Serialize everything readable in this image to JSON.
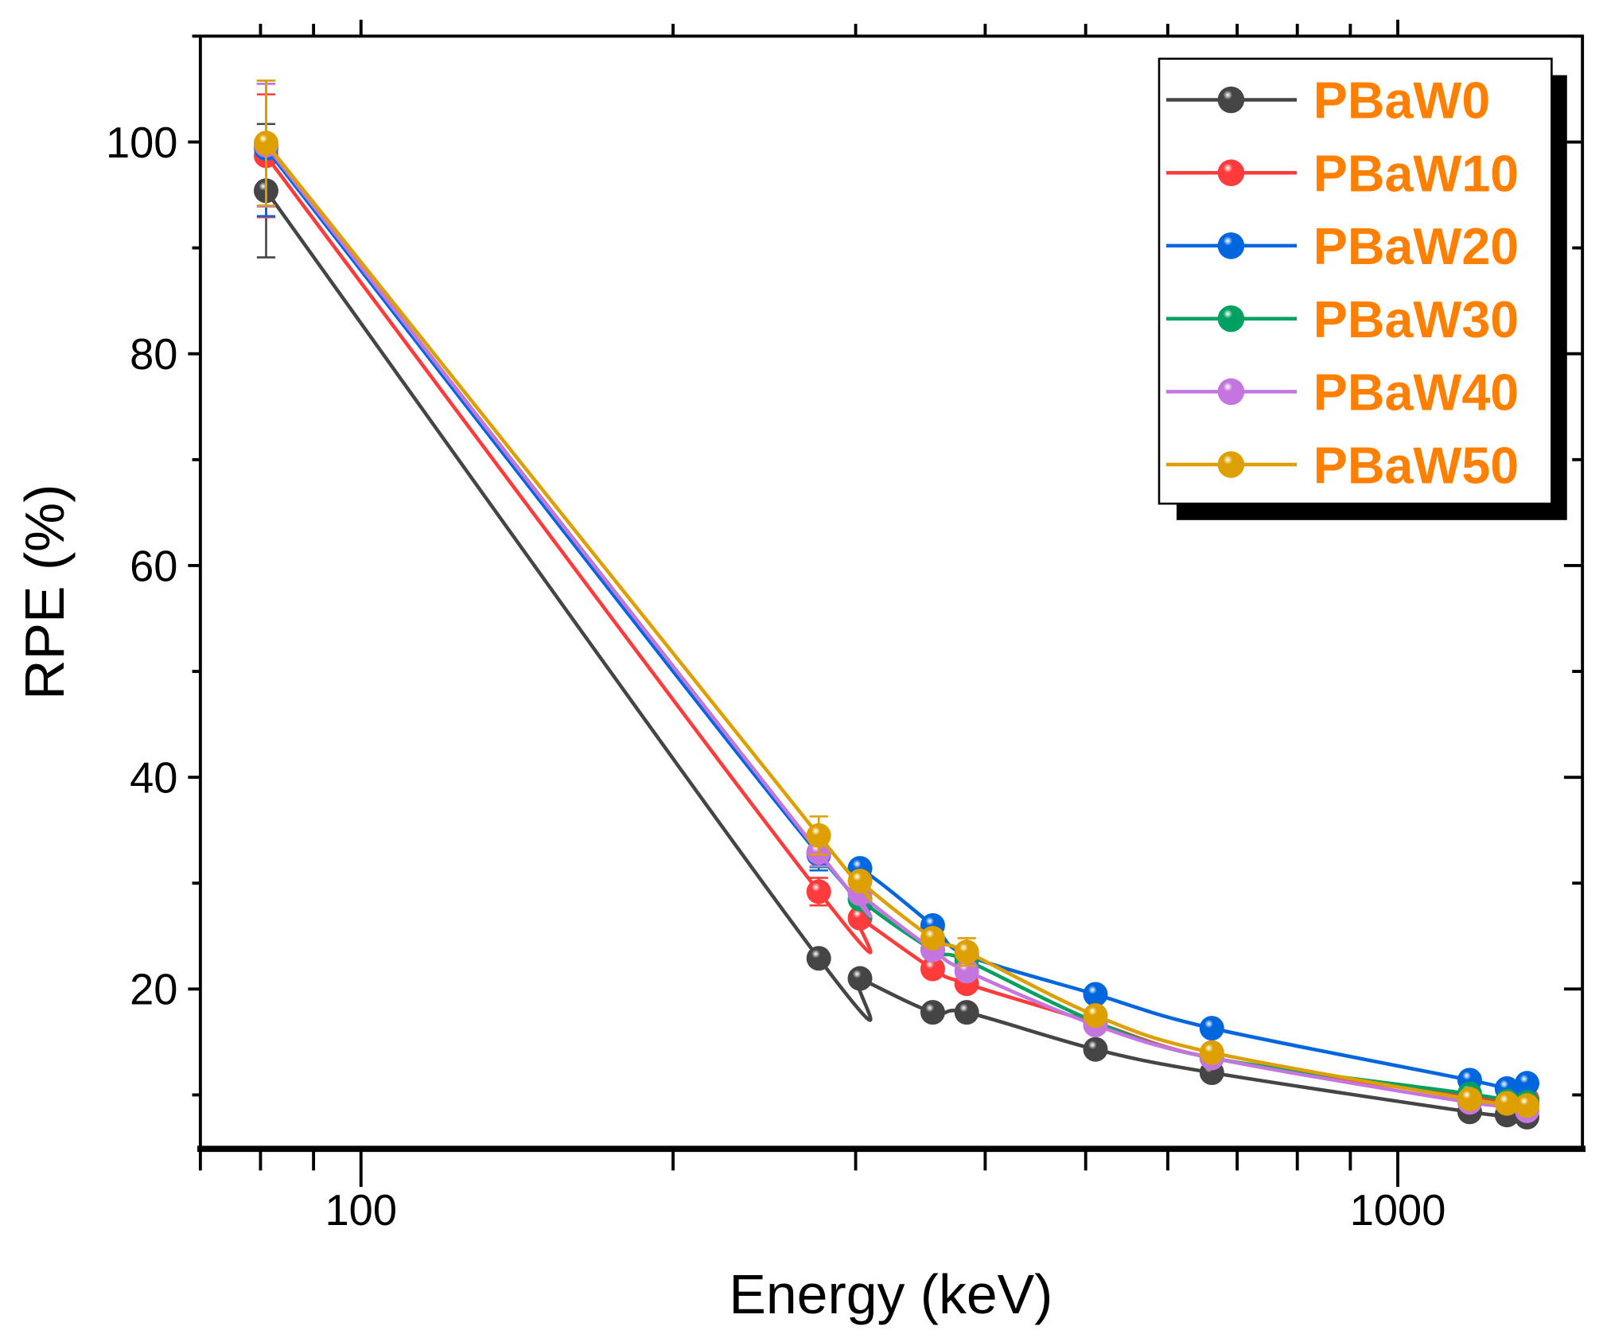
{
  "chart_data": {
    "type": "line",
    "title": "",
    "xlabel": "Energy (keV)",
    "ylabel": "RPE (%)",
    "xscale": "log",
    "xlim": [
      70,
      1507
    ],
    "ylim": [
      5,
      110
    ],
    "x_ticks": [
      100,
      1000
    ],
    "x_tick_labels": [
      "100",
      "1000"
    ],
    "y_ticks": [
      20,
      40,
      60,
      80,
      100
    ],
    "y_tick_labels": [
      "20",
      "40",
      "60",
      "80",
      "100"
    ],
    "legend_position": "top-right",
    "grid": false,
    "x": [
      81,
      276.4,
      302.9,
      356.0,
      383.9,
      511,
      661.7,
      1173.2,
      1274.5,
      1332.5
    ],
    "series": [
      {
        "name": "PBaW0",
        "color": "#454545",
        "values": [
          95.4,
          22.9,
          21.0,
          17.8,
          17.8,
          14.3,
          12.1,
          8.4,
          8.1,
          7.9
        ],
        "errors": [
          6.3,
          0.5,
          0.4,
          0.4,
          0.4,
          0.3,
          0.3,
          0.3,
          0.3,
          0.3
        ]
      },
      {
        "name": "PBaW10",
        "color": "#FF3B3B",
        "values": [
          98.7,
          29.2,
          26.7,
          21.9,
          20.5,
          16.8,
          13.5,
          9.8,
          9.4,
          9.6
        ],
        "errors": [
          5.8,
          1.3,
          0.5,
          0.4,
          0.6,
          0.3,
          0.3,
          0.3,
          0.3,
          0.3
        ]
      },
      {
        "name": "PBaW20",
        "color": "#0066DD",
        "values": [
          99.4,
          32.7,
          31.4,
          26.0,
          23.2,
          19.5,
          16.3,
          11.4,
          10.6,
          11.1
        ],
        "errors": [
          6.4,
          1.5,
          0.5,
          0.4,
          0.5,
          0.3,
          0.3,
          0.3,
          0.3,
          0.3
        ]
      },
      {
        "name": "PBaW30",
        "color": "#00A060",
        "values": [
          99.7,
          32.9,
          28.5,
          23.7,
          22.7,
          16.9,
          13.5,
          10.1,
          9.4,
          9.3
        ],
        "errors": [
          5.8,
          1.4,
          0.5,
          0.4,
          0.6,
          0.3,
          0.3,
          0.3,
          0.3,
          0.3
        ]
      },
      {
        "name": "PBaW40",
        "color": "#C475E0",
        "values": [
          99.7,
          32.9,
          29.0,
          23.7,
          21.7,
          16.6,
          13.5,
          9.3,
          9.2,
          8.5
        ],
        "errors": [
          5.8,
          1.3,
          0.5,
          0.4,
          0.5,
          0.3,
          0.3,
          0.3,
          0.3,
          0.3
        ]
      },
      {
        "name": "PBaW50",
        "color": "#DDA000",
        "values": [
          99.9,
          34.5,
          30.2,
          24.8,
          23.5,
          17.5,
          14.0,
          9.6,
          9.2,
          9.0
        ],
        "errors": [
          5.9,
          1.8,
          0.5,
          0.4,
          1.3,
          0.3,
          0.3,
          0.3,
          0.3,
          0.3
        ]
      }
    ],
    "legend_text_color": "#FF8000"
  }
}
